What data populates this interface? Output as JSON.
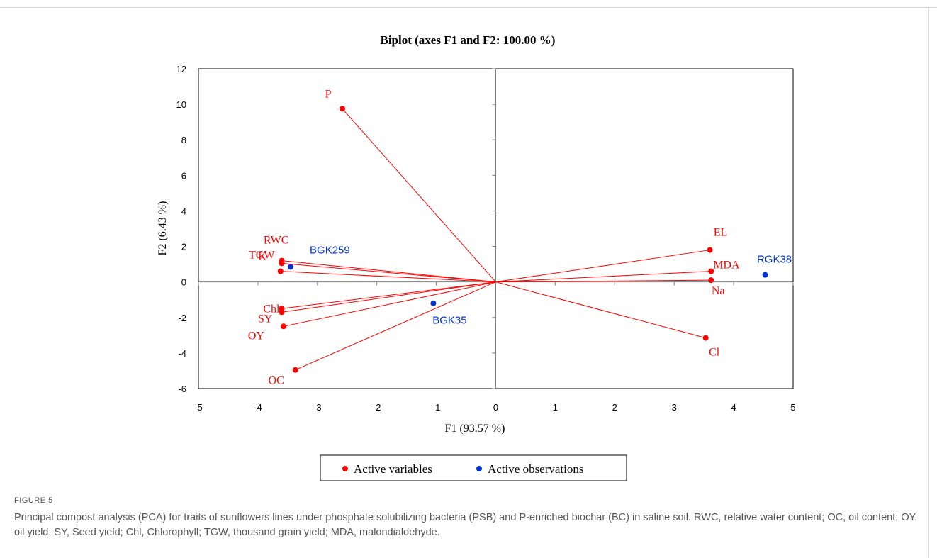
{
  "figure": {
    "label": "FIGURE 5",
    "caption": "Principal compost analysis (PCA) for traits of sunflowers lines under phosphate solubilizing bacteria (PSB) and P-enriched biochar (BC) in saline soil. RWC, relative water content; OC, oil content; OY, oil yield; SY, Seed yield; Chl, Chlorophyll; TGW, thousand grain yield; MDA, malondialdehyde."
  },
  "chart_data": {
    "type": "scatter",
    "title": "Biplot (axes F1 and F2: 100.00 %)",
    "xlabel": "F1 (93.57 %)",
    "ylabel": "F2 (6.43 %)",
    "xlim": [
      -5,
      5
    ],
    "ylim": [
      -6,
      12
    ],
    "xticks": [
      -5,
      -4,
      -3,
      -2,
      -1,
      0,
      1,
      2,
      3,
      4,
      5
    ],
    "yticks": [
      -6,
      -4,
      -2,
      0,
      2,
      4,
      6,
      8,
      10,
      12
    ],
    "grid": false,
    "legend_position": "bottom-center",
    "series": [
      {
        "name": "Active variables",
        "color": "#ff0000",
        "vectors_from_origin": true,
        "points": [
          {
            "label": "P",
            "x": -2.58,
            "y": 9.75
          },
          {
            "label": "RWC",
            "x": -3.6,
            "y": 1.2
          },
          {
            "label": "TGW",
            "x": -3.6,
            "y": 1.05
          },
          {
            "label": "K",
            "x": -3.62,
            "y": 0.6
          },
          {
            "label": "Chl",
            "x": -3.6,
            "y": -1.5
          },
          {
            "label": "SY",
            "x": -3.6,
            "y": -1.7
          },
          {
            "label": "OY",
            "x": -3.57,
            "y": -2.5
          },
          {
            "label": "OC",
            "x": -3.37,
            "y": -4.95
          },
          {
            "label": "EL",
            "x": 3.6,
            "y": 1.8
          },
          {
            "label": "MDA",
            "x": 3.62,
            "y": 0.6
          },
          {
            "label": "Na",
            "x": 3.62,
            "y": 0.1
          },
          {
            "label": "Cl",
            "x": 3.53,
            "y": -3.15
          }
        ]
      },
      {
        "name": "Active observations",
        "color": "#0033cc",
        "vectors_from_origin": false,
        "points": [
          {
            "label": "BGK259",
            "x": -3.45,
            "y": 0.85
          },
          {
            "label": "BGK35",
            "x": -1.05,
            "y": -1.2
          },
          {
            "label": "RGK38",
            "x": 4.53,
            "y": 0.4
          }
        ]
      }
    ]
  }
}
